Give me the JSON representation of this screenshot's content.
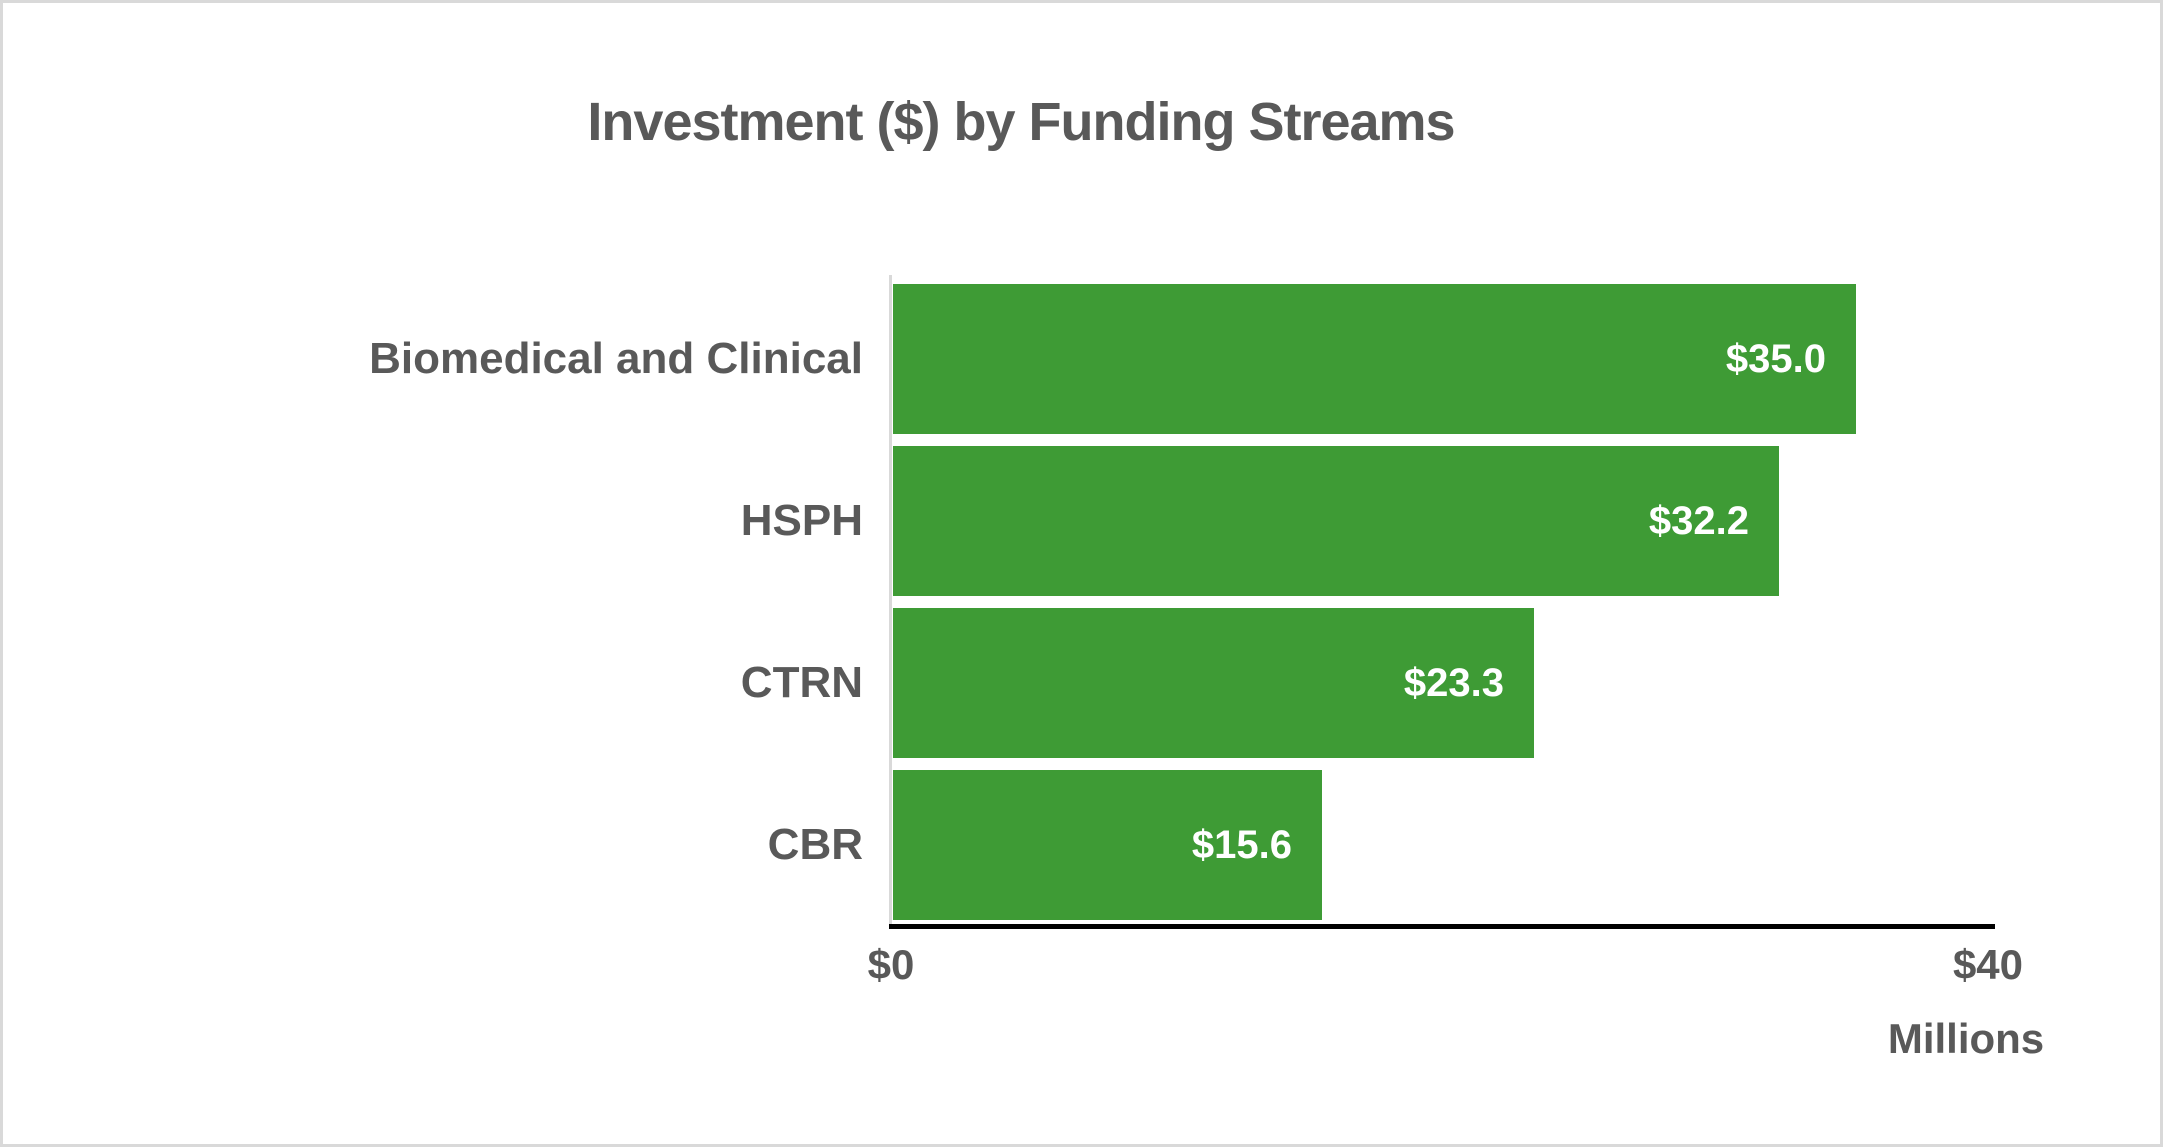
{
  "chart_data": {
    "type": "bar",
    "orientation": "horizontal",
    "title": "Investment ($) by Funding Streams",
    "categories": [
      "Biomedical and Clinical",
      "HSPH",
      "CTRN",
      "CBR"
    ],
    "values": [
      35.0,
      32.2,
      23.3,
      15.6
    ],
    "value_labels": [
      "$35.0",
      "$32.2",
      "$23.3",
      "$15.6"
    ],
    "x_ticks": [
      "$0",
      "$40"
    ],
    "xlim": [
      0,
      40
    ],
    "xlabel_unit": "Millions",
    "grid": false,
    "legend": false,
    "colors": {
      "bar_fill": "#3e9b35",
      "value_label_text": "#ffffff",
      "text": "#595959",
      "axis_line": "#000000",
      "baseline_tick": "#d9d9d9",
      "canvas_border": "#d9d9d9",
      "background": "#ffffff"
    }
  }
}
